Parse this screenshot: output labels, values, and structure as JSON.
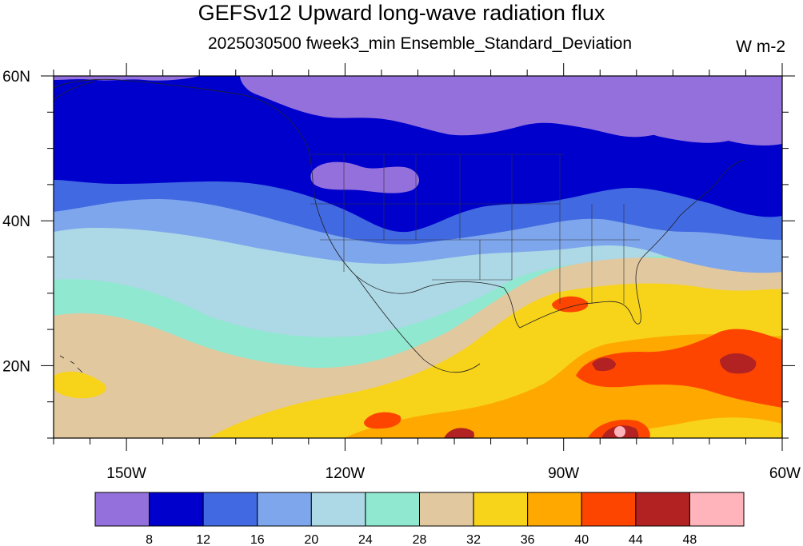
{
  "title": "GEFSv12 Upward long-wave radiation flux",
  "subtitle": "2025030500 fweek3_min Ensemble_Standard_Deviation",
  "units": "W m-2",
  "map": {
    "lon_range": [
      -160,
      -60
    ],
    "lat_range": [
      10,
      60
    ],
    "lat_labels": [
      {
        "lat": 60,
        "label": "60N"
      },
      {
        "lat": 40,
        "label": "40N"
      },
      {
        "lat": 20,
        "label": "20N"
      }
    ],
    "lon_labels": [
      {
        "lon": -150,
        "label": "150W"
      },
      {
        "lon": -120,
        "label": "120W"
      },
      {
        "lon": -90,
        "label": "90W"
      },
      {
        "lon": -60,
        "label": "60W"
      }
    ]
  },
  "colorbar": {
    "colors": [
      "#9370db",
      "#0000cd",
      "#4169e1",
      "#7ea6ec",
      "#add8e6",
      "#90e8d0",
      "#e2c89e",
      "#f7d31a",
      "#fea800",
      "#fd4500",
      "#b22222",
      "#ffb3ba"
    ],
    "labels": [
      "8",
      "12",
      "16",
      "20",
      "24",
      "28",
      "32",
      "36",
      "40",
      "44",
      "48"
    ]
  }
}
